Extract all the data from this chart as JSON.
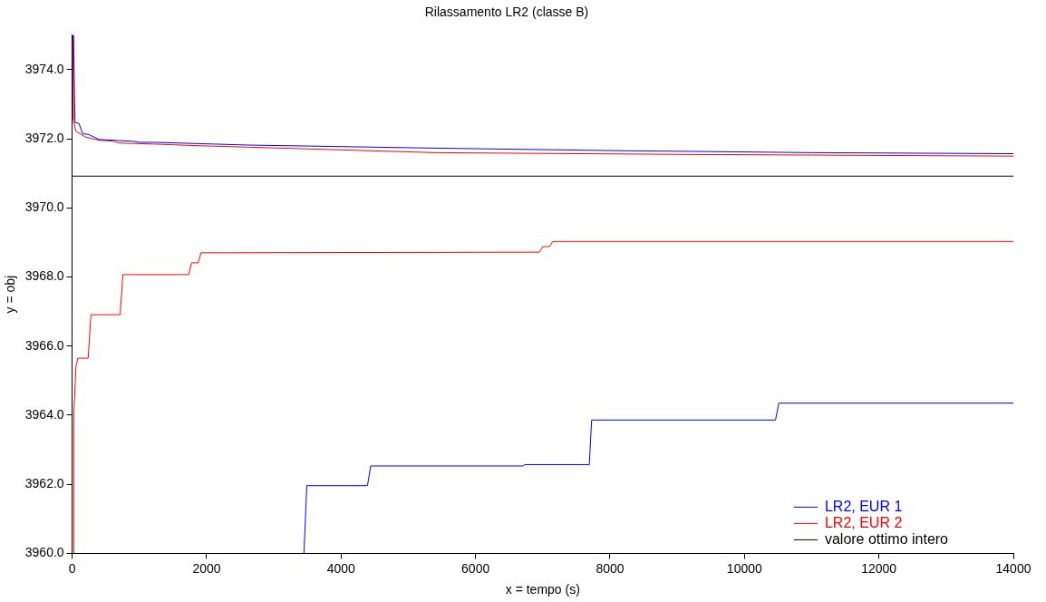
{
  "chart_data": {
    "type": "line",
    "title": "Rilassamento LR2 (classe B)",
    "xlabel": "x = tempo (s)",
    "ylabel": "y = obj",
    "xlim": [
      0,
      14000
    ],
    "xticks": [
      0,
      2000,
      4000,
      6000,
      8000,
      10000,
      12000,
      14000
    ],
    "ylim": [
      3960,
      3975
    ],
    "yticks": [
      {
        "value": 3960,
        "label": "3960.0"
      },
      {
        "value": 3962,
        "label": "3962.0"
      },
      {
        "value": 3964,
        "label": "3964.0"
      },
      {
        "value": 3966,
        "label": "3966.0"
      },
      {
        "value": 3968,
        "label": "3968.0"
      },
      {
        "value": 3970,
        "label": "3970.0"
      },
      {
        "value": 3972,
        "label": "3972.0"
      },
      {
        "value": 3974,
        "label": "3974.0"
      }
    ],
    "grid": false,
    "legend": "bottom right",
    "marker": "none",
    "line_style": "solid",
    "series": [
      {
        "name": "LR2, EUR 1",
        "color": "#0000ff",
        "x": [
          20,
          42,
          100,
          155,
          250,
          400,
          620,
          700,
          900,
          1000,
          1200,
          1900,
          2600,
          5400,
          8000,
          11000,
          14000
        ],
        "values": [
          3975,
          3972.47,
          3972.45,
          3972.15,
          3972.12,
          3971.98,
          3971.96,
          3971.95,
          3971.93,
          3971.9,
          3971.9,
          3971.86,
          3971.82,
          3971.73,
          3971.66,
          3971.6,
          3971.57
        ]
      },
      {
        "color": "#0000ff",
        "x": [
          3448,
          3490,
          4392,
          4441,
          6700,
          6734,
          7692,
          7727,
          10462,
          10511,
          14000
        ],
        "values": [
          3960,
          3961.96,
          3961.96,
          3962.53,
          3962.53,
          3962.57,
          3962.57,
          3963.86,
          3963.86,
          3964.35,
          3964.35
        ]
      },
      {
        "name": "LR2, EUR 2",
        "color": "#ff0000",
        "x": [
          10,
          14,
          56,
          200,
          400,
          620,
          690,
          1200,
          1880,
          2600,
          5400,
          9000,
          14000
        ],
        "values": [
          3975,
          3972.55,
          3972.22,
          3972.05,
          3971.96,
          3971.93,
          3971.88,
          3971.85,
          3971.8,
          3971.76,
          3971.6,
          3971.55,
          3971.5
        ]
      },
      {
        "color": "#ff0000",
        "x": [
          20,
          24,
          56,
          84,
          238,
          280,
          713,
          755,
          1734,
          1776,
          1874,
          1916,
          6950,
          7000,
          7100,
          7150,
          14000
        ],
        "values": [
          3960,
          3964,
          3965.41,
          3965.65,
          3965.65,
          3966.91,
          3966.91,
          3968.07,
          3968.07,
          3968.41,
          3968.41,
          3968.7,
          3968.72,
          3968.88,
          3968.88,
          3969.03,
          3969.03
        ]
      }
    ],
    "ref_lines": [
      {
        "axis": "y",
        "value": 3970.92,
        "label": "valore ottimo intero",
        "color": "#000000"
      }
    ]
  }
}
